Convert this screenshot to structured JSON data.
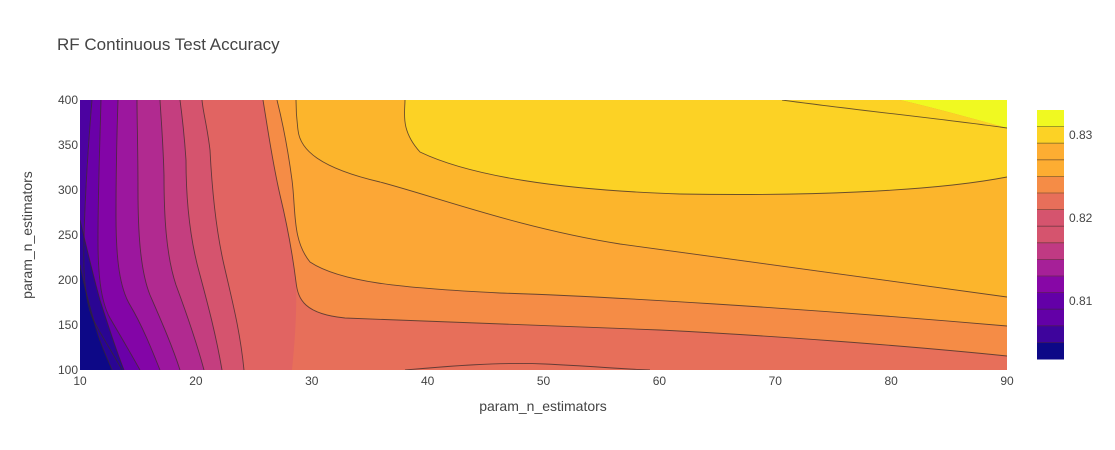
{
  "chart_data": {
    "type": "contour",
    "title": "RF Continuous Test Accuracy",
    "xlabel": "param_n_estimators",
    "ylabel": "param_n_estimators",
    "xlim": [
      10,
      90
    ],
    "ylim": [
      100,
      400
    ],
    "x_ticks": [
      "10",
      "20",
      "30",
      "40",
      "50",
      "60",
      "70",
      "80",
      "90"
    ],
    "y_ticks": [
      "100",
      "150",
      "200",
      "250",
      "300",
      "350",
      "400"
    ],
    "colorbar": {
      "range": [
        0.803,
        0.833
      ],
      "ticks": [
        "0.81",
        "0.82",
        "0.83"
      ],
      "tick_values": [
        0.81,
        0.82,
        0.83
      ],
      "colorscale": [
        "#0d0887",
        "#3e049c",
        "#6300a7",
        "#8707a6",
        "#a62098",
        "#c03a83",
        "#d5546e",
        "#e76f5a",
        "#f58c46",
        "#fdad32",
        "#fcd225",
        "#f0f921"
      ]
    },
    "levels": [
      0.804,
      0.806,
      0.808,
      0.81,
      0.812,
      0.814,
      0.816,
      0.818,
      0.82,
      0.822,
      0.824,
      0.826,
      0.828,
      0.83,
      0.832
    ]
  }
}
